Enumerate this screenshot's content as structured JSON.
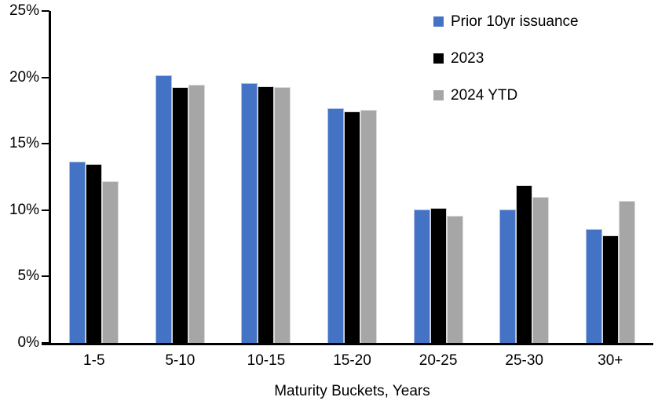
{
  "chart_data": {
    "type": "bar",
    "title": "",
    "xlabel": "Maturity Buckets, Years",
    "ylabel": "",
    "ylim": [
      0,
      25
    ],
    "yticks": [
      0,
      5,
      10,
      15,
      20,
      25
    ],
    "ytick_labels": [
      "0%",
      "5%",
      "10%",
      "15%",
      "20%",
      "25%"
    ],
    "categories": [
      "1-5",
      "5-10",
      "10-15",
      "15-20",
      "20-25",
      "25-30",
      "30+"
    ],
    "series": [
      {
        "name": "Prior 10yr issuance",
        "color": "#4472C4",
        "border_color": "#A9C0E4",
        "values": [
          13.7,
          20.2,
          19.6,
          17.7,
          10.1,
          10.1,
          8.6
        ]
      },
      {
        "name": "2023",
        "color": "#000000",
        "border_color": "#D9D9D9",
        "values": [
          13.5,
          19.3,
          19.4,
          17.5,
          10.2,
          11.9,
          8.1
        ]
      },
      {
        "name": "2024 YTD",
        "color": "#A6A6A6",
        "border_color": "#DBDBDB",
        "values": [
          12.2,
          19.5,
          19.3,
          17.6,
          9.6,
          11.0,
          10.7
        ]
      }
    ],
    "legend_position": "top-right",
    "grid": false,
    "axis_color": "#000000",
    "background_color": "#FFFFFF"
  }
}
